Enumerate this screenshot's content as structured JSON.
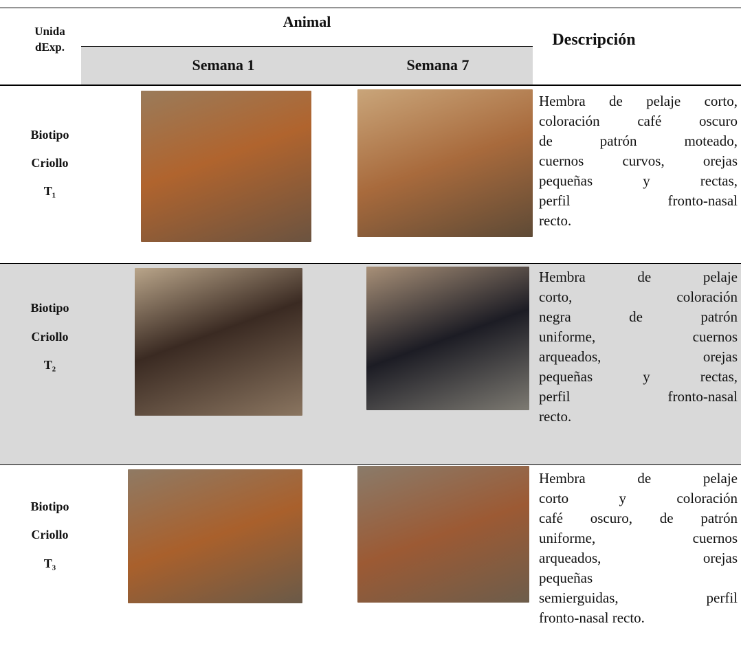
{
  "table": {
    "header": {
      "unit": [
        "Unida",
        "dExp."
      ],
      "animal": "Animal",
      "weeks": [
        "Semana 1",
        "Semana 7"
      ],
      "description": "Descripción"
    },
    "rows": [
      {
        "unit": [
          "Biotipo",
          "Criollo",
          "T₁"
        ],
        "description": [
          "Hembra de pelaje corto,",
          "coloración café oscuro",
          "de patrón moteado,",
          "cuernos curvos, orejas",
          "pequeñas y rectas,",
          "perfil fronto-nasal",
          "recto."
        ]
      },
      {
        "unit": [
          "Biotipo",
          "Criollo",
          "T₂"
        ],
        "description": [
          "Hembra de pelaje",
          "corto, coloración",
          "negra de patrón",
          "uniforme, cuernos",
          "arqueados, orejas",
          "pequeñas y rectas,",
          "perfil fronto-nasal",
          "recto."
        ]
      },
      {
        "unit": [
          "Biotipo",
          "Criollo",
          "T₃"
        ],
        "description": [
          "Hembra de pelaje",
          "corto y coloración",
          "café oscuro, de patrón",
          "uniforme, cuernos",
          "arqueados, orejas",
          "pequeñas",
          "semierguidas, perfil",
          "fronto-nasal recto."
        ]
      }
    ]
  }
}
